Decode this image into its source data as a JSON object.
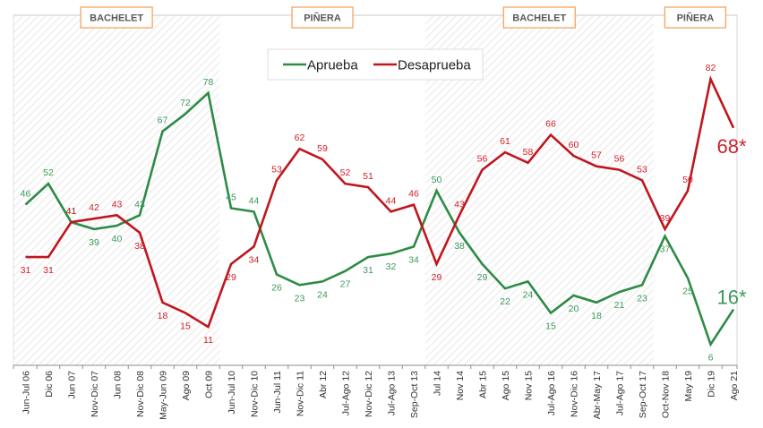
{
  "chart_data": {
    "type": "line",
    "title": "",
    "xlabel": "",
    "ylabel": "",
    "ylim": [
      0,
      100
    ],
    "grid": false,
    "legend": {
      "placement": "top-center",
      "entries": [
        "Aprueba",
        "Desaprueba"
      ]
    },
    "categories": [
      "Jun-Jul 06",
      "Dic 06",
      "Jun 07",
      "Nov-Dic 07",
      "Jun 08",
      "Nov-Dic 08",
      "May-Jun 09",
      "Ago 09",
      "Oct 09",
      "Jun-Jul 10",
      "Nov-Dic 10",
      "Jun-Jul 11",
      "Nov-Dic 11",
      "Abr 12",
      "Jul-Ago 12",
      "Nov-Dic 12",
      "Jul-Ago 13",
      "Sep-Oct 13",
      "Jul 14",
      "Nov 14",
      "Abr 15",
      "Ago 15",
      "Nov 15",
      "Jul-Ago 16",
      "Nov-Dic 16",
      "Abr-May 17",
      "Jul-Ago 17",
      "Sep-Oct 17",
      "Oct-Nov 18",
      "May 19",
      "Dic 19",
      "Ago 21"
    ],
    "series": [
      {
        "name": "Aprueba",
        "color": "#2e8b46",
        "label_color": "#3a9a5a",
        "values": [
          46,
          52,
          41,
          39,
          40,
          43,
          67,
          72,
          78,
          45,
          44,
          26,
          23,
          24,
          27,
          31,
          32,
          34,
          50,
          38,
          29,
          22,
          24,
          15,
          20,
          18,
          21,
          23,
          37,
          25,
          6,
          16
        ],
        "last_label": "16*"
      },
      {
        "name": "Desaprueba",
        "color": "#c0161e",
        "label_color": "#d0202a",
        "values": [
          31,
          31,
          41,
          42,
          43,
          38,
          18,
          15,
          11,
          29,
          34,
          53,
          62,
          59,
          52,
          51,
          44,
          46,
          29,
          43,
          56,
          61,
          58,
          66,
          60,
          57,
          56,
          53,
          39,
          50,
          82,
          68
        ],
        "last_label": "68*"
      }
    ],
    "periods": [
      {
        "label": "BACHELET",
        "from": "Jun-Jul 06",
        "to": "Oct 09",
        "shaded": true
      },
      {
        "label": "PIÑERA",
        "from": "Jun-Jul 10",
        "to": "Sep-Oct 13",
        "shaded": false
      },
      {
        "label": "BACHELET",
        "from": "Jul 14",
        "to": "Sep-Oct 17",
        "shaded": true
      },
      {
        "label": "PIÑERA",
        "from": "Oct-Nov 18",
        "to": "Ago 21",
        "shaded": false
      }
    ]
  }
}
